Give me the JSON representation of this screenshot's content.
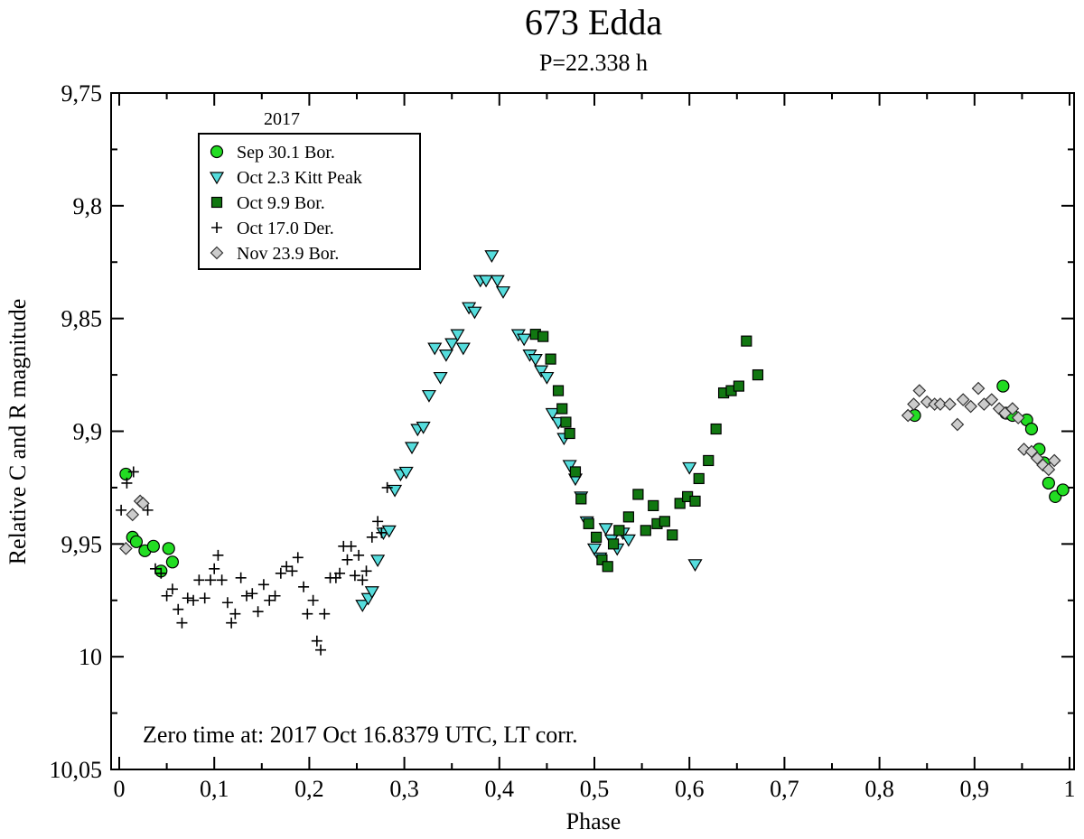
{
  "chart_data": {
    "type": "scatter",
    "title": "673 Edda",
    "subtitle": "P=22.338 h",
    "xlabel": "Phase",
    "ylabel": "Relative C and R magnitude",
    "xlim": [
      0,
      1
    ],
    "ylim": [
      9.75,
      10.05
    ],
    "y_inverted": true,
    "x_ticks": [
      "0",
      "0,1",
      "0,2",
      "0,3",
      "0,4",
      "0,5",
      "0,6",
      "0,7",
      "0,8",
      "0,9",
      "1"
    ],
    "y_ticks": [
      "9,75",
      "9,8",
      "9,85",
      "9,9",
      "9,95",
      "10",
      "10,05"
    ],
    "legend_title": "2017",
    "legend_position": "top-left",
    "annotation": "Zero time at: 2017 Oct 16.8379 UTC, LT corr.",
    "colors": {
      "sep": "#22dd22",
      "oct2": "#55dddd",
      "oct9": "#117711",
      "oct17": "#000000",
      "nov": "#cccccc"
    },
    "series": [
      {
        "name": "Sep 30.1 Bor.",
        "marker": "circle",
        "color": "#22dd22",
        "x": [
          0.007,
          0.014,
          0.018,
          0.027,
          0.036,
          0.044,
          0.052,
          0.056,
          0.837,
          0.93,
          0.933,
          0.94,
          0.955,
          0.96,
          0.968,
          0.973,
          0.978,
          0.985,
          0.993
        ],
        "y": [
          9.919,
          9.947,
          9.949,
          9.953,
          9.951,
          9.962,
          9.952,
          9.958,
          9.893,
          9.88,
          9.892,
          9.893,
          9.895,
          9.899,
          9.908,
          9.914,
          9.923,
          9.929,
          9.926
        ]
      },
      {
        "name": "Oct 2.3 Kitt Peak",
        "marker": "triangle-down",
        "color": "#55dddd",
        "x": [
          0.256,
          0.262,
          0.266,
          0.272,
          0.278,
          0.284,
          0.29,
          0.296,
          0.302,
          0.308,
          0.314,
          0.32,
          0.326,
          0.332,
          0.338,
          0.344,
          0.35,
          0.356,
          0.362,
          0.368,
          0.374,
          0.38,
          0.386,
          0.392,
          0.398,
          0.404,
          0.42,
          0.426,
          0.432,
          0.438,
          0.444,
          0.45,
          0.456,
          0.462,
          0.468,
          0.474,
          0.48,
          0.486,
          0.492,
          0.5,
          0.506,
          0.512,
          0.518,
          0.524,
          0.53,
          0.536,
          0.6,
          0.606
        ],
        "y": [
          9.977,
          9.974,
          9.971,
          9.957,
          9.945,
          9.944,
          9.926,
          9.919,
          9.918,
          9.907,
          9.899,
          9.898,
          9.884,
          9.863,
          9.876,
          9.866,
          9.861,
          9.857,
          9.863,
          9.845,
          9.847,
          9.833,
          9.833,
          9.822,
          9.833,
          9.838,
          9.857,
          9.859,
          9.866,
          9.868,
          9.873,
          9.876,
          9.892,
          9.896,
          9.903,
          9.915,
          9.921,
          9.929,
          9.94,
          9.952,
          9.956,
          9.943,
          9.948,
          9.952,
          9.945,
          9.948,
          9.916,
          9.959
        ]
      },
      {
        "name": "Oct 9.9 Bor.",
        "marker": "square",
        "color": "#117711",
        "x": [
          0.438,
          0.446,
          0.454,
          0.462,
          0.466,
          0.47,
          0.474,
          0.48,
          0.486,
          0.494,
          0.502,
          0.508,
          0.514,
          0.52,
          0.526,
          0.536,
          0.546,
          0.554,
          0.562,
          0.566,
          0.574,
          0.582,
          0.59,
          0.598,
          0.606,
          0.61,
          0.62,
          0.628,
          0.636,
          0.644,
          0.652,
          0.66,
          0.672
        ],
        "y": [
          9.857,
          9.858,
          9.868,
          9.882,
          9.89,
          9.896,
          9.901,
          9.918,
          9.93,
          9.941,
          9.947,
          9.957,
          9.96,
          9.95,
          9.944,
          9.938,
          9.928,
          9.944,
          9.933,
          9.941,
          9.94,
          9.946,
          9.932,
          9.929,
          9.931,
          9.921,
          9.913,
          9.899,
          9.883,
          9.882,
          9.88,
          9.86,
          9.875
        ]
      },
      {
        "name": "Oct 17.0 Der.",
        "marker": "plus",
        "color": "#000000",
        "x": [
          0.002,
          0.008,
          0.015,
          0.022,
          0.03,
          0.038,
          0.044,
          0.05,
          0.056,
          0.062,
          0.066,
          0.072,
          0.078,
          0.084,
          0.09,
          0.096,
          0.1,
          0.104,
          0.108,
          0.114,
          0.118,
          0.122,
          0.128,
          0.134,
          0.14,
          0.146,
          0.152,
          0.158,
          0.164,
          0.17,
          0.176,
          0.182,
          0.188,
          0.194,
          0.198,
          0.204,
          0.208,
          0.212,
          0.216,
          0.222,
          0.228,
          0.232,
          0.236,
          0.24,
          0.244,
          0.248,
          0.252,
          0.256,
          0.26,
          0.266,
          0.272,
          0.276,
          0.282
        ],
        "y": [
          9.935,
          9.923,
          9.918,
          9.931,
          9.935,
          9.961,
          9.963,
          9.973,
          9.97,
          9.979,
          9.985,
          9.974,
          9.975,
          9.966,
          9.974,
          9.966,
          9.961,
          9.955,
          9.966,
          9.976,
          9.985,
          9.981,
          9.965,
          9.973,
          9.972,
          9.98,
          9.968,
          9.975,
          9.973,
          9.963,
          9.96,
          9.962,
          9.956,
          9.969,
          9.981,
          9.975,
          9.993,
          9.997,
          9.981,
          9.965,
          9.965,
          9.963,
          9.951,
          9.957,
          9.951,
          9.964,
          9.955,
          9.966,
          9.962,
          9.947,
          9.94,
          9.945,
          9.925
        ]
      },
      {
        "name": "Nov 23.9 Bor.",
        "marker": "diamond",
        "color": "#cccccc",
        "x": [
          0.007,
          0.014,
          0.022,
          0.025,
          0.83,
          0.836,
          0.842,
          0.85,
          0.858,
          0.864,
          0.874,
          0.882,
          0.888,
          0.896,
          0.904,
          0.91,
          0.918,
          0.926,
          0.932,
          0.94,
          0.946,
          0.952,
          0.96,
          0.966,
          0.972,
          0.978,
          0.984
        ],
        "y": [
          9.952,
          9.937,
          9.931,
          9.932,
          9.893,
          9.888,
          9.882,
          9.887,
          9.888,
          9.888,
          9.888,
          9.897,
          9.886,
          9.889,
          9.881,
          9.888,
          9.886,
          9.89,
          9.892,
          9.89,
          9.894,
          9.908,
          9.909,
          9.912,
          9.915,
          9.917,
          9.913
        ]
      }
    ]
  }
}
